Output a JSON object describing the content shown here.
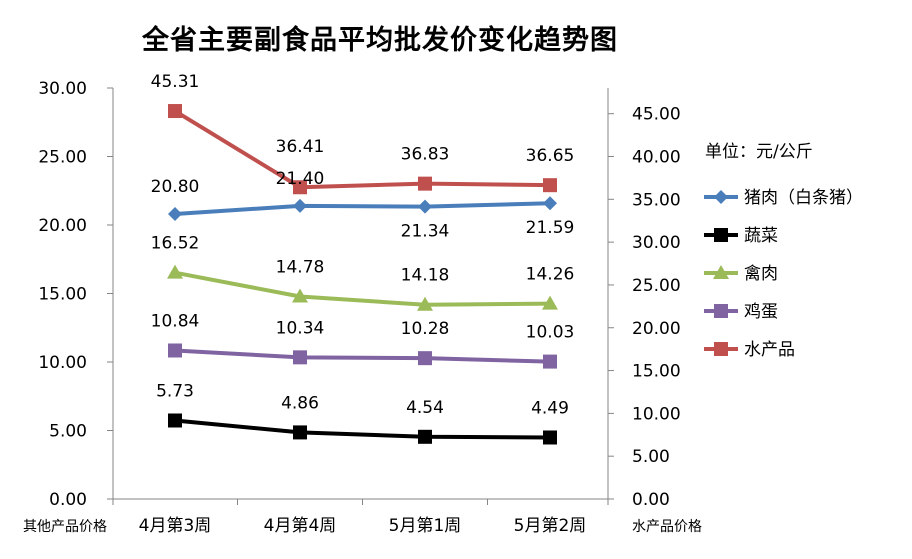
{
  "chart_data": {
    "type": "line",
    "title": "全省主要副食品平均批发价变化趋势图",
    "unit_label": "单位：元/公斤",
    "left_axis_label": "其他产品价格",
    "right_axis_label": "水产品价格",
    "categories": [
      "4月第3周",
      "4月第4周",
      "5月第1周",
      "5月第2周"
    ],
    "left_ylim": [
      0,
      30
    ],
    "left_ticks": [
      "0.00",
      "5.00",
      "10.00",
      "15.00",
      "20.00",
      "25.00",
      "30.00"
    ],
    "right_ylim": [
      0,
      48
    ],
    "right_ticks": [
      "0.00",
      "5.00",
      "10.00",
      "15.00",
      "20.00",
      "25.00",
      "30.00",
      "35.00",
      "40.00",
      "45.00"
    ],
    "series": [
      {
        "name": "猪肉（白条猪）",
        "axis": "left",
        "color": "#4A7EBB",
        "marker": "diamond",
        "values": [
          20.8,
          21.4,
          21.34,
          21.59
        ],
        "labels": [
          "20.80",
          "21.40",
          "21.34",
          "21.59"
        ]
      },
      {
        "name": "蔬菜",
        "axis": "left",
        "color": "#000000",
        "marker": "square",
        "values": [
          5.73,
          4.86,
          4.54,
          4.49
        ],
        "labels": [
          "5.73",
          "4.86",
          "4.54",
          "4.49"
        ]
      },
      {
        "name": "禽肉",
        "axis": "left",
        "color": "#9BBB59",
        "marker": "triangle",
        "values": [
          16.52,
          14.78,
          14.18,
          14.26
        ],
        "labels": [
          "16.52",
          "14.78",
          "14.18",
          "14.26"
        ]
      },
      {
        "name": "鸡蛋",
        "axis": "left",
        "color": "#8064A2",
        "marker": "square",
        "values": [
          10.84,
          10.34,
          10.28,
          10.03
        ],
        "labels": [
          "10.84",
          "10.34",
          "10.28",
          "10.03"
        ]
      },
      {
        "name": "水产品",
        "axis": "right",
        "color": "#C0504D",
        "marker": "square",
        "values": [
          45.31,
          36.41,
          36.83,
          36.65
        ],
        "labels": [
          "45.31",
          "36.41",
          "36.83",
          "36.65"
        ]
      }
    ]
  }
}
